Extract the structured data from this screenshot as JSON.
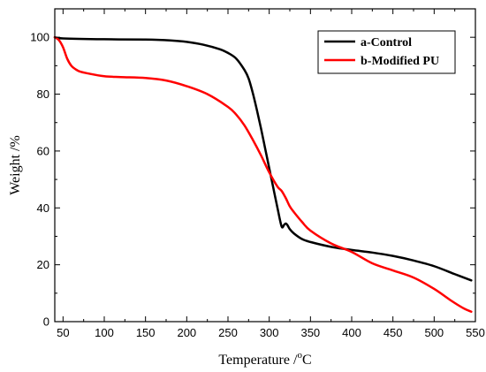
{
  "chart_data": {
    "type": "line",
    "title": "",
    "xlabel": {
      "pre": "Temperature /",
      "sup": "o",
      "post": "C"
    },
    "ylabel": "Weight /%",
    "xlim": [
      40,
      550
    ],
    "ylim": [
      0,
      110
    ],
    "xticks": [
      50,
      100,
      150,
      200,
      250,
      300,
      350,
      400,
      450,
      500,
      550
    ],
    "yticks": [
      0,
      20,
      40,
      60,
      80,
      100
    ],
    "grid": false,
    "legend_position": "top-right",
    "series": [
      {
        "name": "a-Control",
        "color": "#000000",
        "x": [
          40,
          50,
          100,
          150,
          180,
          200,
          220,
          240,
          250,
          260,
          270,
          275,
          280,
          285,
          290,
          295,
          300,
          305,
          310,
          315,
          318,
          320,
          322,
          325,
          330,
          340,
          350,
          375,
          400,
          425,
          450,
          475,
          500,
          525,
          545
        ],
        "y": [
          100,
          99.6,
          99.3,
          99.2,
          98.9,
          98.4,
          97.4,
          95.8,
          94.5,
          92.5,
          88.5,
          85.5,
          80.5,
          74.5,
          68,
          61,
          54,
          47,
          40,
          33.5,
          34,
          34.5,
          34,
          32.5,
          31,
          29,
          28,
          26.3,
          25.2,
          24.3,
          23.1,
          21.5,
          19.5,
          16.7,
          14.5
        ]
      },
      {
        "name": "b-Modified PU",
        "color": "#ff0000",
        "x": [
          40,
          45,
          50,
          55,
          60,
          65,
          70,
          80,
          100,
          120,
          150,
          175,
          200,
          225,
          250,
          260,
          270,
          280,
          290,
          300,
          310,
          315,
          320,
          325,
          330,
          340,
          350,
          375,
          400,
          425,
          450,
          475,
          500,
          520,
          535,
          545
        ],
        "y": [
          100,
          99,
          96.5,
          92.5,
          90,
          88.8,
          88,
          87.3,
          86.3,
          86,
          85.7,
          84.8,
          82.8,
          80,
          75.5,
          72.8,
          69,
          64,
          58.5,
          52.5,
          47.5,
          46,
          43.5,
          40.5,
          38.5,
          35,
          32,
          27.5,
          24.5,
          20.5,
          18,
          15.5,
          11.5,
          7.5,
          4.8,
          3.5
        ]
      }
    ]
  }
}
